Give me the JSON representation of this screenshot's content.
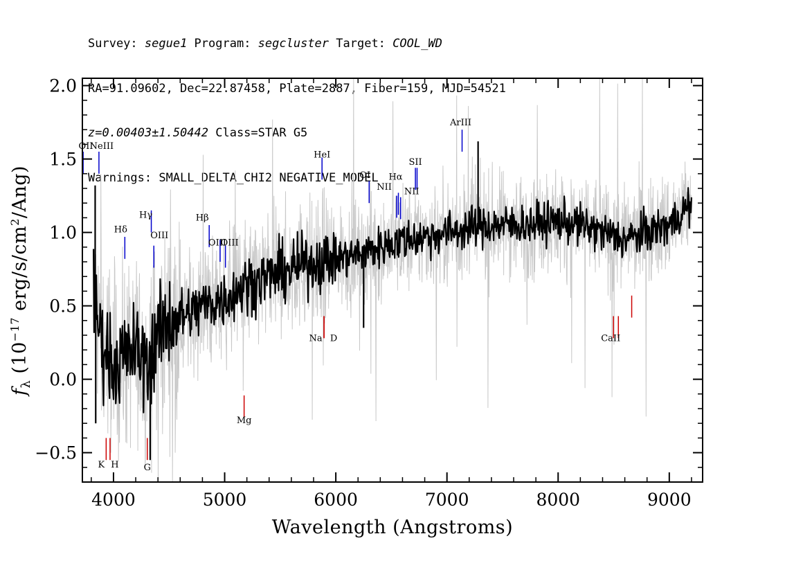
{
  "header": {
    "line1": {
      "survey_label": "Survey: ",
      "survey": "segue1",
      "program_label": " Program: ",
      "program": "segcluster",
      "target_label": " Target: ",
      "target": "COOL_WD"
    },
    "line2": "RA=91.09602, Dec=22.87458, Plate=2887, Fiber=159, MJD=54521",
    "line3": {
      "z": "z=0.00403±1.50442",
      "class": " Class=STAR G5"
    },
    "line4": "Warnings: SMALL_DELTA_CHI2 NEGATIVE_MODEL"
  },
  "chart_data": {
    "type": "line",
    "xlabel": "Wavelength (Angstroms)",
    "ylabel": "f_λ (10^-17 erg/s/cm^2/Ang)",
    "xlim": [
      3720,
      9300
    ],
    "ylim": [
      -0.7,
      2.05
    ],
    "xticks": [
      4000,
      5000,
      6000,
      7000,
      8000,
      9000
    ],
    "yticks": [
      -0.5,
      0.0,
      0.5,
      1.0,
      1.5,
      2.0
    ],
    "ytick_labels": [
      "−0.5",
      "0.0",
      "0.5",
      "1.0",
      "1.5",
      "2.0"
    ],
    "x_range": [
      3820,
      9200
    ],
    "series": [
      {
        "role": "flux (smoothed, black)",
        "color": "#000000",
        "x": [
          3820,
          3900,
          4000,
          4100,
          4200,
          4300,
          4400,
          4500,
          4600,
          4700,
          4800,
          4900,
          5000,
          5100,
          5200,
          5400,
          5600,
          5800,
          6000,
          6200,
          6400,
          6600,
          6800,
          7000,
          7200,
          7400,
          7600,
          7800,
          8000,
          8200,
          8400,
          8600,
          8800,
          9000,
          9200
        ],
        "y": [
          0.55,
          0.25,
          0.1,
          0.15,
          0.2,
          0.1,
          0.3,
          0.4,
          0.42,
          0.45,
          0.5,
          0.52,
          0.55,
          0.6,
          0.65,
          0.7,
          0.75,
          0.8,
          0.82,
          0.85,
          0.9,
          0.95,
          0.97,
          1.0,
          1.03,
          1.05,
          1.05,
          1.06,
          1.08,
          1.05,
          1.0,
          0.95,
          1.0,
          1.05,
          1.2
        ]
      },
      {
        "role": "flux noise envelope (grey)",
        "color": "#c8c8c8",
        "x": [
          3820,
          3900,
          4000,
          4100,
          4200,
          4300,
          4400,
          4500,
          4600,
          4700,
          4800,
          4900,
          5000,
          5100,
          5200,
          5400,
          5600,
          5800,
          6000,
          6200,
          6400,
          6600,
          6800,
          7000,
          7200,
          7400,
          7600,
          7800,
          8000,
          8200,
          8400,
          8600,
          8800,
          9000,
          9200
        ],
        "y": [
          0.55,
          0.25,
          0.1,
          0.15,
          0.2,
          0.1,
          0.3,
          0.4,
          0.42,
          0.45,
          0.5,
          0.52,
          0.55,
          0.6,
          0.65,
          0.7,
          0.75,
          0.8,
          0.82,
          0.85,
          0.9,
          0.95,
          0.97,
          1.0,
          1.03,
          1.05,
          1.05,
          1.06,
          1.08,
          1.05,
          1.0,
          0.95,
          1.0,
          1.05,
          1.2
        ]
      }
    ],
    "spikes": [
      {
        "x": 3835,
        "y": 1.32,
        "color": "#000000"
      },
      {
        "x": 3840,
        "y": -0.3,
        "color": "#000000"
      },
      {
        "x": 7280,
        "y": 1.62,
        "color": "#000000"
      },
      {
        "x": 6250,
        "y": 0.35,
        "color": "#000000"
      },
      {
        "x": 4330,
        "y": -0.55,
        "color": "#000000"
      }
    ],
    "emission_lines": [
      {
        "label": "OII",
        "x": 3727,
        "y0": 1.4,
        "y1": 1.55,
        "label_y": 1.57
      },
      {
        "label": "NeIII",
        "x": 3869,
        "y0": 1.4,
        "y1": 1.55,
        "label_y": 1.57
      },
      {
        "label": "Hδ",
        "x": 4102,
        "y0": 0.82,
        "y1": 0.97,
        "label_y": 1.0
      },
      {
        "label": "Hγ",
        "x": 4340,
        "y0": 1.0,
        "y1": 1.15,
        "label_y": 1.1
      },
      {
        "label": "OIII",
        "x": 4363,
        "y0": 0.76,
        "y1": 0.91,
        "label_y": 0.96
      },
      {
        "label": "Hβ",
        "x": 4861,
        "y0": 0.9,
        "y1": 1.05,
        "label_y": 1.08
      },
      {
        "label": "OIII",
        "x": 4959,
        "y0": 0.8,
        "y1": 0.95,
        "label_y": 0.91
      },
      {
        "label": "OIII",
        "x": 5007,
        "y0": 0.76,
        "y1": 0.91,
        "label_y": 0.91
      },
      {
        "label": "HeI",
        "x": 5876,
        "y0": 1.36,
        "y1": 1.51,
        "label_y": 1.51
      },
      {
        "label": "OI",
        "x": 6300,
        "y0": 1.2,
        "y1": 1.35,
        "label_y": 1.37
      },
      {
        "label": "NII",
        "x": 6548,
        "y0": 1.1,
        "y1": 1.25,
        "label_y": 1.29
      },
      {
        "label": "Hα",
        "x": 6563,
        "y0": 1.12,
        "y1": 1.27,
        "label_y": 1.36
      },
      {
        "label": "NII",
        "x": 6583,
        "y0": 1.09,
        "y1": 1.24,
        "label_y": 1.26
      },
      {
        "label": "SII",
        "x": 6716,
        "y0": 1.29,
        "y1": 1.44,
        "label_y": 1.46
      },
      {
        "label": "SII",
        "x": 6731,
        "y0": 1.29,
        "y1": 1.44,
        "label_y": 1.46
      },
      {
        "label": "ArIII",
        "x": 7136,
        "y0": 1.55,
        "y1": 1.7,
        "label_y": 1.73
      }
    ],
    "absorption_lines": [
      {
        "label": "K",
        "x": 3934,
        "y0": -0.55,
        "y1": -0.4,
        "label_y": -0.6
      },
      {
        "label": "H",
        "x": 3969,
        "y0": -0.55,
        "y1": -0.4,
        "label_y": -0.6
      },
      {
        "label": "G",
        "x": 4304,
        "y0": -0.55,
        "y1": -0.4,
        "label_y": -0.62
      },
      {
        "label": "Mg",
        "x": 5175,
        "y0": -0.26,
        "y1": -0.11,
        "label_y": -0.3
      },
      {
        "label": "Na",
        "x": 5894,
        "y0": 0.28,
        "y1": 0.43,
        "label_y": 0.26
      },
      {
        "label": "D",
        "x": 5894,
        "y0": 0.28,
        "y1": 0.43,
        "label_y": 0.26
      },
      {
        "label": "CaII",
        "x": 8498,
        "y0": 0.28,
        "y1": 0.43,
        "label_y": 0.26
      },
      {
        "label": "CaII",
        "x": 8542,
        "y0": 0.28,
        "y1": 0.43,
        "label_y": 0.26
      },
      {
        "label": "CaII",
        "x": 8662,
        "y0": 0.42,
        "y1": 0.57,
        "label_y": 0.26
      }
    ],
    "colors": {
      "flux": "#000000",
      "noise": "#c8c8c8",
      "emission": "#0000cc",
      "absorption": "#cc0000"
    }
  }
}
